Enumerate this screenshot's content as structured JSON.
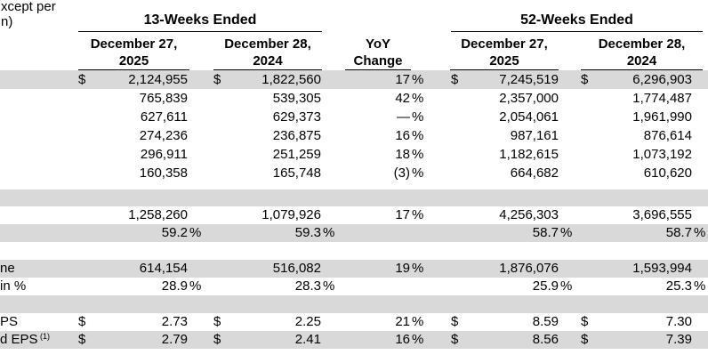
{
  "note": {
    "line1": "xcept per",
    "line2": "n)"
  },
  "header": {
    "group_13w": "13-Weeks Ended",
    "group_52w": "52-Weeks Ended",
    "col_13w_2025": {
      "line1": "December 27,",
      "line2": "2025"
    },
    "col_13w_2024": {
      "line1": "December 28,",
      "line2": "2024"
    },
    "yoy": {
      "line1": "YoY",
      "line2": "Change"
    },
    "col_52w_2025": {
      "line1": "December 27,",
      "line2": "2025"
    },
    "col_52w_2024": {
      "line1": "December 28,",
      "line2": "2024"
    }
  },
  "colors": {
    "shade": "#d9d9d9",
    "text": "#000000",
    "rule": "#000000"
  },
  "rows": [
    {
      "h": 21,
      "shade": "gray",
      "label": "",
      "sup": "",
      "d1": "$",
      "v1": "2,124,955",
      "s1": "",
      "d2": "$",
      "v2": "1,822,560",
      "s2": "",
      "vy": "17",
      "sy": "%",
      "d3": "$",
      "v3": "7,245,519",
      "s3": "",
      "d4": "$",
      "v4": "6,296,903",
      "s4": ""
    },
    {
      "h": 21,
      "shade": "white",
      "label": "",
      "sup": "",
      "d1": "",
      "v1": "765,839",
      "s1": "",
      "d2": "",
      "v2": "539,305",
      "s2": "",
      "vy": "42",
      "sy": "%",
      "d3": "",
      "v3": "2,357,000",
      "s3": "",
      "d4": "",
      "v4": "1,774,487",
      "s4": ""
    },
    {
      "h": 21,
      "shade": "white",
      "label": "",
      "sup": "",
      "d1": "",
      "v1": "627,611",
      "s1": "",
      "d2": "",
      "v2": "629,373",
      "s2": "",
      "vy": "—",
      "sy": "%",
      "d3": "",
      "v3": "2,054,061",
      "s3": "",
      "d4": "",
      "v4": "1,961,990",
      "s4": ""
    },
    {
      "h": 21,
      "shade": "white",
      "label": "",
      "sup": "",
      "d1": "",
      "v1": "274,236",
      "s1": "",
      "d2": "",
      "v2": "236,875",
      "s2": "",
      "vy": "16",
      "sy": "%",
      "d3": "",
      "v3": "987,161",
      "s3": "",
      "d4": "",
      "v4": "876,614",
      "s4": ""
    },
    {
      "h": 21,
      "shade": "white",
      "label": "",
      "sup": "",
      "d1": "",
      "v1": "296,911",
      "s1": "",
      "d2": "",
      "v2": "251,259",
      "s2": "",
      "vy": "18",
      "sy": "%",
      "d3": "",
      "v3": "1,182,615",
      "s3": "",
      "d4": "",
      "v4": "1,073,192",
      "s4": ""
    },
    {
      "h": 21,
      "shade": "white",
      "label": "",
      "sup": "",
      "d1": "",
      "v1": "160,358",
      "s1": "",
      "d2": "",
      "v2": "165,748",
      "s2": "",
      "vy": "(3)",
      "sy": "%",
      "d3": "",
      "v3": "664,682",
      "s3": "",
      "d4": "",
      "v4": "610,620",
      "s4": ""
    },
    {
      "h": 8,
      "shade": "white",
      "spacer": true
    },
    {
      "h": 19,
      "shade": "gray",
      "spacer": true
    },
    {
      "h": 20,
      "shade": "white",
      "label": "",
      "sup": "",
      "d1": "",
      "v1": "1,258,260",
      "s1": "",
      "d2": "",
      "v2": "1,079,926",
      "s2": "",
      "vy": "17",
      "sy": "%",
      "d3": "",
      "v3": "4,256,303",
      "s3": "",
      "d4": "",
      "v4": "3,696,555",
      "s4": ""
    },
    {
      "h": 20,
      "shade": "gray",
      "label": "",
      "sup": "",
      "d1": "",
      "v1": "59.2",
      "s1": "%",
      "d2": "",
      "v2": "59.3",
      "s2": "%",
      "vy": "",
      "sy": "",
      "d3": "",
      "v3": "58.7",
      "s3": "%",
      "d4": "",
      "v4": "58.7",
      "s4": "%"
    },
    {
      "h": 20,
      "shade": "white",
      "spacer": true
    },
    {
      "h": 20,
      "shade": "gray",
      "label": "ne",
      "sup": "",
      "d1": "",
      "v1": "614,154",
      "s1": "",
      "d2": "",
      "v2": "516,082",
      "s2": "",
      "vy": "19",
      "sy": "%",
      "d3": "",
      "v3": "1,876,076",
      "s3": "",
      "d4": "",
      "v4": "1,593,994",
      "s4": ""
    },
    {
      "h": 20,
      "shade": "white",
      "label": "in %",
      "sup": "",
      "d1": "",
      "v1": "28.9",
      "s1": "%",
      "d2": "",
      "v2": "28.3",
      "s2": "%",
      "vy": "",
      "sy": "",
      "d3": "",
      "v3": "25.9",
      "s3": "%",
      "d4": "",
      "v4": "25.3",
      "s4": "%"
    },
    {
      "h": 20,
      "shade": "gray",
      "spacer": true
    },
    {
      "h": 20,
      "shade": "white",
      "label": "PS",
      "sup": "",
      "d1": "$",
      "v1": "2.73",
      "s1": "",
      "d2": "$",
      "v2": "2.25",
      "s2": "",
      "vy": "21",
      "sy": "%",
      "d3": "$",
      "v3": "8.59",
      "s3": "",
      "d4": "$",
      "v4": "7.30",
      "s4": ""
    },
    {
      "h": 20,
      "shade": "gray",
      "label": "d EPS",
      "sup": "(1)",
      "d1": "$",
      "v1": "2.79",
      "s1": "",
      "d2": "$",
      "v2": "2.41",
      "s2": "",
      "vy": "16",
      "sy": "%",
      "d3": "$",
      "v3": "8.56",
      "s3": "",
      "d4": "$",
      "v4": "7.39",
      "s4": ""
    }
  ]
}
